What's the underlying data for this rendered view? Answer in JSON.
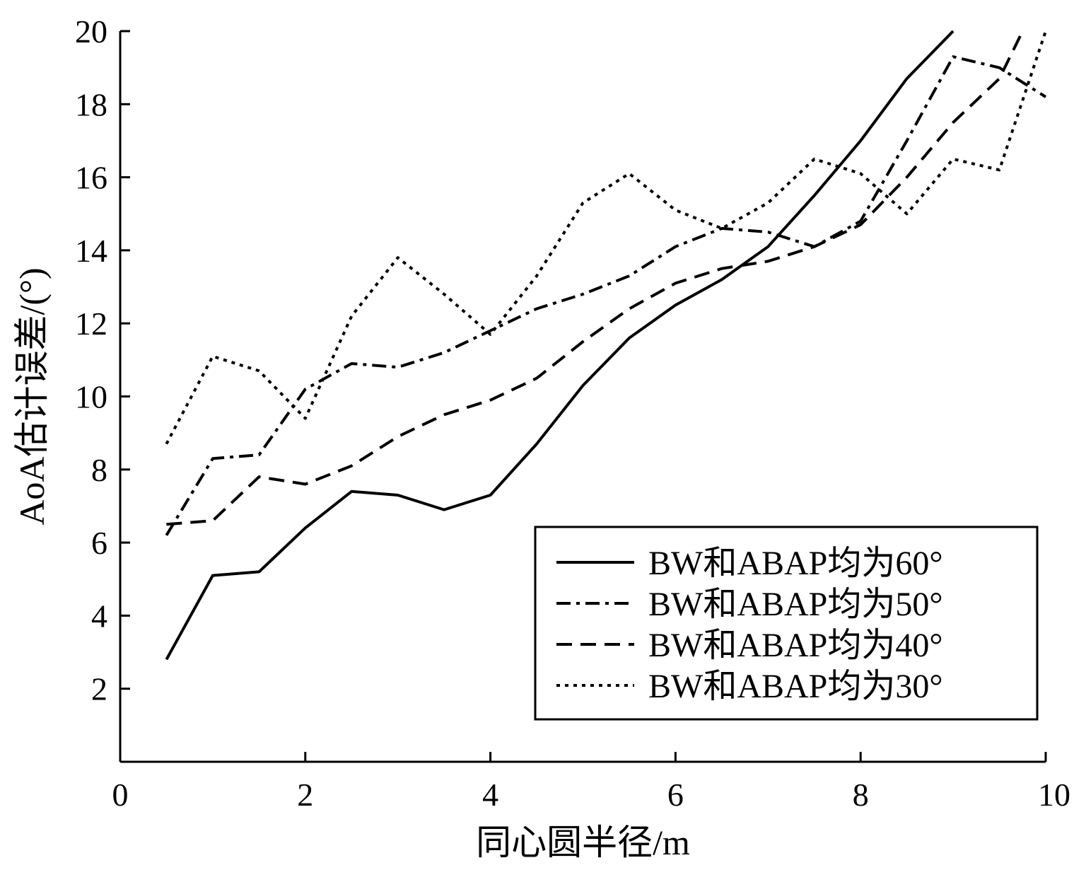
{
  "chart_data": {
    "type": "line",
    "xlabel": "同心圆半径/m",
    "ylabel": "AoA估计误差/(°)",
    "xlim": [
      0,
      10
    ],
    "ylim": [
      0,
      20
    ],
    "xticks": [
      0,
      2,
      4,
      6,
      8,
      10
    ],
    "yticks": [
      2,
      4,
      6,
      8,
      10,
      12,
      14,
      16,
      18,
      20
    ],
    "grid": false,
    "legend_position": "bottom-right",
    "series": [
      {
        "name": "BW和ABAP均为60°",
        "dash": "solid",
        "x": [
          0.5,
          1.0,
          1.5,
          2.0,
          2.5,
          3.0,
          3.5,
          4.0,
          4.5,
          5.0,
          5.5,
          6.0,
          6.5,
          7.0,
          7.5,
          8.0,
          8.5,
          9.0
        ],
        "y": [
          2.8,
          5.1,
          5.2,
          6.4,
          7.4,
          7.3,
          6.9,
          7.3,
          8.7,
          10.3,
          11.6,
          12.5,
          13.2,
          14.1,
          15.5,
          17.0,
          18.7,
          20.0
        ]
      },
      {
        "name": "BW和ABAP均为50°",
        "dash": "dashdot",
        "x": [
          0.5,
          1.0,
          1.5,
          2.0,
          2.5,
          3.0,
          3.5,
          4.0,
          4.5,
          5.0,
          5.5,
          6.0,
          6.5,
          7.0,
          7.5,
          8.0,
          8.5,
          9.0,
          9.5,
          10.0
        ],
        "y": [
          6.2,
          8.3,
          8.4,
          10.2,
          10.9,
          10.8,
          11.2,
          11.8,
          12.4,
          12.8,
          13.3,
          14.1,
          14.6,
          14.5,
          14.1,
          14.8,
          17.0,
          19.3,
          19.0,
          18.2
        ]
      },
      {
        "name": "BW和ABAP均为40°",
        "dash": "dashed",
        "x": [
          0.5,
          1.0,
          1.5,
          2.0,
          2.5,
          3.0,
          3.5,
          4.0,
          4.5,
          5.0,
          5.5,
          6.0,
          6.5,
          7.0,
          7.5,
          8.0,
          8.5,
          9.0,
          9.5,
          9.75
        ],
        "y": [
          6.5,
          6.6,
          7.8,
          7.6,
          8.1,
          8.9,
          9.5,
          9.9,
          10.5,
          11.5,
          12.4,
          13.1,
          13.5,
          13.7,
          14.1,
          14.7,
          16.0,
          17.5,
          18.7,
          20.0
        ]
      },
      {
        "name": "BW和ABAP均为30°",
        "dash": "dotted",
        "x": [
          0.5,
          1.0,
          1.5,
          2.0,
          2.5,
          3.0,
          3.5,
          4.0,
          4.5,
          5.0,
          5.5,
          6.0,
          6.5,
          7.0,
          7.5,
          8.0,
          8.5,
          9.0,
          9.5,
          10.0
        ],
        "y": [
          8.7,
          11.1,
          10.7,
          9.4,
          12.2,
          13.8,
          12.8,
          11.7,
          13.3,
          15.3,
          16.1,
          15.1,
          14.6,
          15.3,
          16.5,
          16.1,
          15.0,
          16.5,
          16.2,
          20.0
        ]
      }
    ]
  }
}
